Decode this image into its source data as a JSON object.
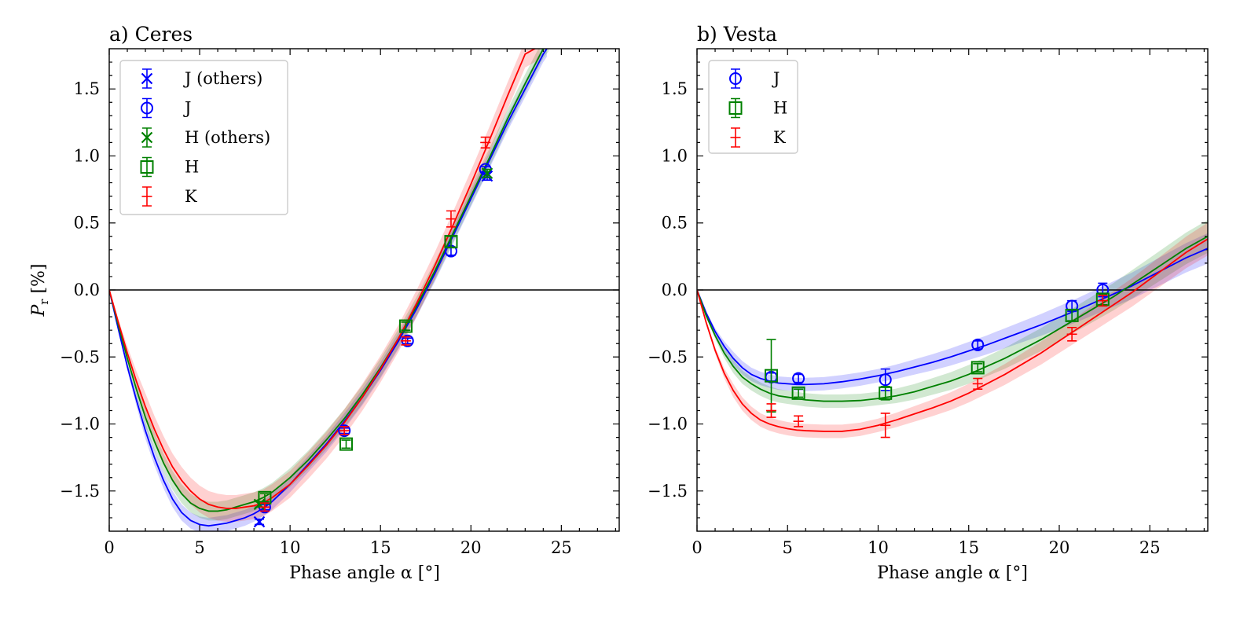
{
  "chart_data": [
    {
      "type": "scatter",
      "title": "a) Ceres",
      "xlabel": "Phase angle α [°]",
      "ylabel": "P",
      "ylabel_sub": "r",
      "ylabel_unit": " [%]",
      "xlim": [
        0,
        28.2
      ],
      "ylim": [
        -1.8,
        1.8
      ],
      "xticks": [
        0,
        5,
        10,
        15,
        20,
        25
      ],
      "yticks": [
        -1.5,
        -1.0,
        -0.5,
        0.0,
        0.5,
        1.0,
        1.5
      ],
      "xtick_labels": [
        "0",
        "5",
        "10",
        "15",
        "20",
        "25"
      ],
      "ytick_labels": [
        "−1.5",
        "−1.0",
        "−0.5",
        "0.0",
        "0.5",
        "1.0",
        "1.5"
      ],
      "legend": {
        "location": "upper-left",
        "entries": [
          {
            "label": "J (others)",
            "color": "#0000ff",
            "marker": "x"
          },
          {
            "label": "J",
            "color": "#0000ff",
            "marker": "circle"
          },
          {
            "label": "H (others)",
            "color": "#008000",
            "marker": "x"
          },
          {
            "label": "H",
            "color": "#008000",
            "marker": "square"
          },
          {
            "label": "K",
            "color": "#ff0000",
            "marker": "plus"
          }
        ]
      },
      "fits": [
        {
          "name": "J",
          "color": "#0000ff",
          "band_halfwidth": 0.06,
          "x": [
            0,
            0.5,
            1,
            1.5,
            2,
            2.5,
            3,
            3.5,
            4,
            4.5,
            5,
            5.5,
            6,
            6.5,
            7,
            7.5,
            8,
            8.5,
            9,
            10,
            11,
            12,
            13,
            14,
            15,
            16,
            17,
            18,
            19,
            20,
            21,
            22,
            23,
            24,
            24.2
          ],
          "y": [
            0,
            -0.29,
            -0.57,
            -0.82,
            -1.05,
            -1.25,
            -1.42,
            -1.56,
            -1.66,
            -1.72,
            -1.75,
            -1.76,
            -1.75,
            -1.74,
            -1.72,
            -1.7,
            -1.67,
            -1.63,
            -1.58,
            -1.45,
            -1.3,
            -1.15,
            -0.98,
            -0.8,
            -0.6,
            -0.38,
            -0.14,
            0.12,
            0.4,
            0.68,
            0.96,
            1.24,
            1.5,
            1.76,
            1.8
          ]
        },
        {
          "name": "H",
          "color": "#008000",
          "band_halfwidth": 0.07,
          "x": [
            0,
            0.5,
            1,
            1.5,
            2,
            2.5,
            3,
            3.5,
            4,
            4.5,
            5,
            5.5,
            6,
            6.5,
            7,
            7.5,
            8,
            8.5,
            9,
            10,
            11,
            12,
            13,
            14,
            15,
            16,
            17,
            18,
            19,
            20,
            21,
            22,
            23,
            24,
            24.3
          ],
          "y": [
            0,
            -0.26,
            -0.51,
            -0.74,
            -0.95,
            -1.13,
            -1.29,
            -1.42,
            -1.52,
            -1.59,
            -1.63,
            -1.65,
            -1.65,
            -1.64,
            -1.62,
            -1.6,
            -1.58,
            -1.55,
            -1.51,
            -1.4,
            -1.27,
            -1.12,
            -0.96,
            -0.78,
            -0.58,
            -0.36,
            -0.12,
            0.14,
            0.42,
            0.7,
            0.98,
            1.27,
            1.54,
            1.8,
            1.85
          ]
        },
        {
          "name": "K",
          "color": "#ff0000",
          "band_halfwidth": 0.1,
          "x": [
            0,
            0.5,
            1,
            1.5,
            2,
            2.5,
            3,
            3.5,
            4,
            4.5,
            5,
            5.5,
            6,
            6.5,
            7,
            7.5,
            8,
            8.5,
            9,
            10,
            11,
            12,
            13,
            14,
            15,
            16,
            17,
            18,
            19,
            20,
            21,
            22,
            23,
            23.8
          ],
          "y": [
            0,
            -0.24,
            -0.47,
            -0.68,
            -0.87,
            -1.04,
            -1.19,
            -1.32,
            -1.42,
            -1.5,
            -1.56,
            -1.6,
            -1.62,
            -1.63,
            -1.63,
            -1.62,
            -1.61,
            -1.59,
            -1.55,
            -1.45,
            -1.31,
            -1.16,
            -0.99,
            -0.8,
            -0.59,
            -0.36,
            -0.1,
            0.18,
            0.48,
            0.79,
            1.11,
            1.44,
            1.76,
            1.82
          ]
        }
      ],
      "points": [
        {
          "series": "J (others)",
          "color": "#0000ff",
          "marker": "x",
          "x": [
            8.3,
            20.9
          ],
          "y": [
            -1.73,
            0.85
          ],
          "yerr": [
            0.02,
            0.03
          ]
        },
        {
          "series": "J",
          "color": "#0000ff",
          "marker": "circle",
          "x": [
            8.6,
            13.0,
            16.5,
            18.9,
            20.8
          ],
          "y": [
            -1.62,
            -1.05,
            -0.38,
            0.29,
            0.9
          ],
          "yerr": [
            0.02,
            0.02,
            0.02,
            0.03,
            0.02
          ]
        },
        {
          "series": "H (others)",
          "color": "#008000",
          "marker": "x",
          "x": [
            8.3,
            20.9
          ],
          "y": [
            -1.6,
            0.87
          ],
          "yerr": [
            0.02,
            0.03
          ]
        },
        {
          "series": "H",
          "color": "#008000",
          "marker": "square",
          "x": [
            8.6,
            13.1,
            16.4,
            18.9
          ],
          "y": [
            -1.55,
            -1.15,
            -0.27,
            0.36
          ],
          "yerr": [
            0.03,
            0.03,
            0.03,
            0.04
          ]
        },
        {
          "series": "K",
          "color": "#ff0000",
          "marker": "plus",
          "x": [
            8.6,
            13.0,
            16.4,
            18.9,
            20.8
          ],
          "y": [
            -1.62,
            -1.05,
            -0.38,
            0.53,
            1.1
          ],
          "yerr": [
            0.03,
            0.03,
            0.03,
            0.06,
            0.04
          ]
        }
      ],
      "reference_line": {
        "y": 0.0
      }
    },
    {
      "type": "scatter",
      "title": "b) Vesta",
      "xlabel": "Phase angle α [°]",
      "xlim": [
        0,
        28.2
      ],
      "ylim": [
        -1.8,
        1.8
      ],
      "xticks": [
        0,
        5,
        10,
        15,
        20,
        25
      ],
      "yticks": [
        -1.5,
        -1.0,
        -0.5,
        0.0,
        0.5,
        1.0,
        1.5
      ],
      "xtick_labels": [
        "0",
        "5",
        "10",
        "15",
        "20",
        "25"
      ],
      "ytick_labels": [
        "−1.5",
        "−1.0",
        "−0.5",
        "0.0",
        "0.5",
        "1.0",
        "1.5"
      ],
      "legend": {
        "location": "upper-left",
        "entries": [
          {
            "label": "J",
            "color": "#0000ff",
            "marker": "circle"
          },
          {
            "label": "H",
            "color": "#008000",
            "marker": "square"
          },
          {
            "label": "K",
            "color": "#ff0000",
            "marker": "plus"
          }
        ]
      },
      "fits": [
        {
          "name": "J",
          "color": "#0000ff",
          "band_halfwidth": 0.05,
          "band_growth": 0.0035,
          "x": [
            0,
            0.5,
            1,
            1.5,
            2,
            2.5,
            3,
            3.5,
            4,
            4.5,
            5,
            5.5,
            6,
            7,
            8,
            9,
            10,
            11,
            12,
            13,
            14,
            15,
            16,
            17,
            18,
            19,
            20,
            21,
            22,
            23,
            24,
            25,
            26,
            27,
            28.2
          ],
          "y": [
            0,
            -0.17,
            -0.31,
            -0.42,
            -0.51,
            -0.58,
            -0.63,
            -0.66,
            -0.68,
            -0.695,
            -0.7,
            -0.705,
            -0.705,
            -0.7,
            -0.685,
            -0.665,
            -0.64,
            -0.61,
            -0.575,
            -0.54,
            -0.5,
            -0.455,
            -0.41,
            -0.36,
            -0.31,
            -0.26,
            -0.205,
            -0.15,
            -0.09,
            -0.03,
            0.03,
            0.1,
            0.17,
            0.24,
            0.31
          ]
        },
        {
          "name": "H",
          "color": "#008000",
          "band_halfwidth": 0.05,
          "band_growth": 0.004,
          "x": [
            0,
            0.5,
            1,
            1.5,
            2,
            2.5,
            3,
            3.5,
            4,
            4.5,
            5,
            5.5,
            6,
            7,
            8,
            9,
            10,
            11,
            12,
            13,
            14,
            15,
            16,
            17,
            18,
            19,
            20,
            21,
            22,
            23,
            24,
            25,
            26,
            27,
            28.2
          ],
          "y": [
            0,
            -0.19,
            -0.34,
            -0.47,
            -0.57,
            -0.65,
            -0.7,
            -0.74,
            -0.77,
            -0.79,
            -0.8,
            -0.81,
            -0.82,
            -0.83,
            -0.83,
            -0.825,
            -0.81,
            -0.79,
            -0.76,
            -0.72,
            -0.68,
            -0.63,
            -0.57,
            -0.51,
            -0.44,
            -0.37,
            -0.29,
            -0.21,
            -0.13,
            -0.05,
            0.04,
            0.13,
            0.22,
            0.31,
            0.4
          ]
        },
        {
          "name": "K",
          "color": "#ff0000",
          "band_halfwidth": 0.05,
          "band_growth": 0.004,
          "x": [
            0,
            0.5,
            1,
            1.5,
            2,
            2.5,
            3,
            3.5,
            4,
            4.5,
            5,
            5.5,
            6,
            7,
            8,
            9,
            10,
            11,
            12,
            13,
            14,
            15,
            16,
            17,
            18,
            19,
            20,
            21,
            22,
            23,
            24,
            25,
            26,
            27,
            28.2
          ],
          "y": [
            0,
            -0.24,
            -0.45,
            -0.62,
            -0.75,
            -0.85,
            -0.92,
            -0.97,
            -1.0,
            -1.02,
            -1.035,
            -1.045,
            -1.05,
            -1.055,
            -1.055,
            -1.04,
            -1.01,
            -0.97,
            -0.925,
            -0.88,
            -0.83,
            -0.77,
            -0.7,
            -0.63,
            -0.55,
            -0.47,
            -0.38,
            -0.29,
            -0.2,
            -0.11,
            -0.02,
            0.08,
            0.18,
            0.28,
            0.38
          ]
        }
      ],
      "points": [
        {
          "series": "J",
          "color": "#0000ff",
          "marker": "circle",
          "x": [
            4.1,
            5.6,
            10.4,
            15.5,
            20.7,
            22.4
          ],
          "y": [
            -0.65,
            -0.66,
            -0.67,
            -0.41,
            -0.12,
            0.0
          ],
          "yerr": [
            0.03,
            0.03,
            0.08,
            0.03,
            0.04,
            0.05
          ]
        },
        {
          "series": "H",
          "color": "#008000",
          "marker": "square",
          "x": [
            4.1,
            5.6,
            10.4,
            15.5,
            20.7,
            22.4
          ],
          "y": [
            -0.64,
            -0.77,
            -0.77,
            -0.58,
            -0.19,
            -0.07
          ],
          "yerr": [
            0.27,
            0.03,
            0.05,
            0.03,
            0.04,
            0.04
          ]
        },
        {
          "series": "K",
          "color": "#ff0000",
          "marker": "plus",
          "x": [
            4.1,
            5.6,
            10.4,
            15.5,
            20.7,
            22.4
          ],
          "y": [
            -0.9,
            -0.98,
            -1.01,
            -0.7,
            -0.33,
            -0.08
          ],
          "yerr": [
            0.05,
            0.04,
            0.09,
            0.04,
            0.05,
            0.04
          ]
        }
      ],
      "reference_line": {
        "y": 0.0
      }
    }
  ]
}
